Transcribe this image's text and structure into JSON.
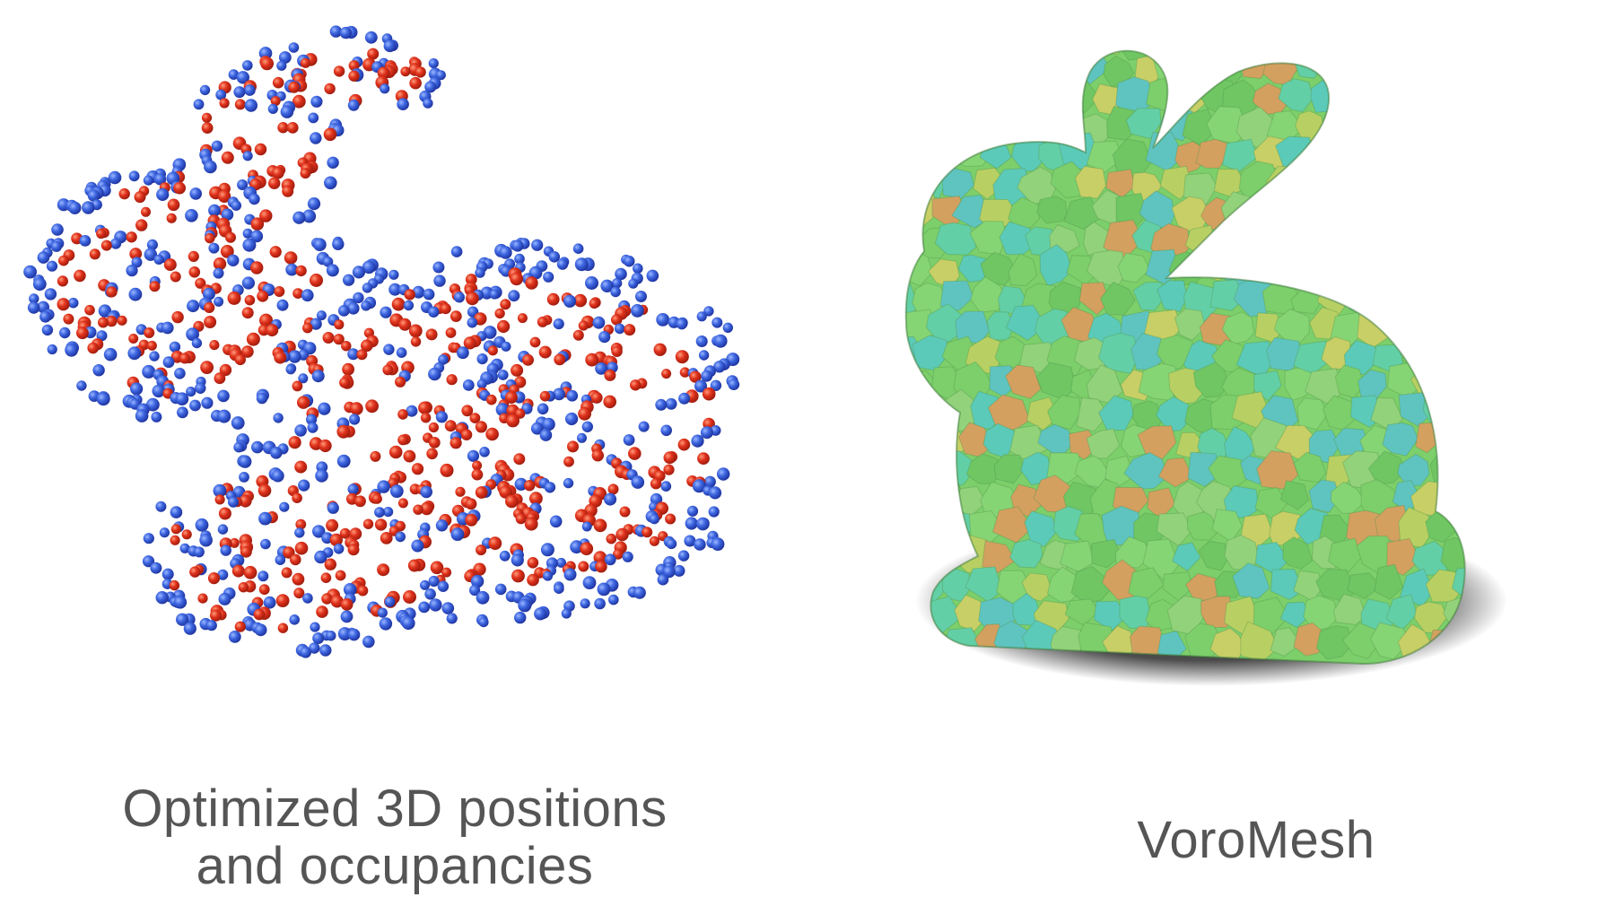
{
  "figure": {
    "left_caption": {
      "line1": "Optimized 3D positions",
      "line2": "and occupancies"
    },
    "right_caption": "VoroMesh"
  },
  "colors": {
    "outside_point": "#3d66e0",
    "inside_point": "#e0321c",
    "mesh_green": "#7ccf6a",
    "mesh_teal": "#5ccab8",
    "mesh_yellow": "#c8cf66",
    "mesh_orange": "#d3a060",
    "caption_text": "#555555"
  },
  "points_panel": {
    "icon": "bunny-point-cloud"
  },
  "mesh_panel": {
    "icon": "bunny-voronoi-mesh"
  }
}
